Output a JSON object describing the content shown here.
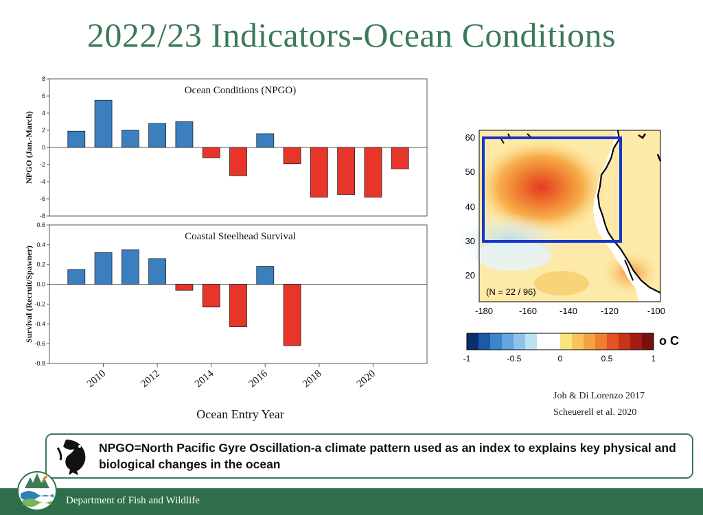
{
  "page": {
    "title": "2022/23 Indicators-Ocean Conditions",
    "x_axis_label": "Ocean Entry Year",
    "citations": [
      "Joh & Di Lorenzo 2017",
      "Scheuerell et al. 2020"
    ],
    "info_text": "NPGO=North Pacific Gyre Oscillation-a climate pattern used as an index to explains key physical and biological changes in the ocean",
    "footer_text": "Department of Fish and Wildlife"
  },
  "colors": {
    "title_green": "#3b7a57",
    "footer_green": "#2f6e4a",
    "positive_bar": "#3b7fbf",
    "negative_bar": "#e8352a",
    "map_box": "#1836c8"
  },
  "chart_data": [
    {
      "type": "bar",
      "title": "Ocean Conditions (NPGO)",
      "ylabel": "NPGO (Jan.-March)",
      "xlabel": "Ocean Entry Year",
      "x": [
        2009,
        2010,
        2011,
        2012,
        2013,
        2014,
        2015,
        2016,
        2017,
        2018,
        2019,
        2020,
        2021
      ],
      "values": [
        1.9,
        5.5,
        2.0,
        2.8,
        3.0,
        -1.2,
        -3.3,
        1.6,
        -1.9,
        -5.8,
        -5.5,
        -5.8,
        -2.5
      ],
      "ylim": [
        -8,
        8
      ],
      "yticks": [
        -8,
        -6,
        -4,
        -2,
        0,
        2,
        4,
        6,
        8
      ],
      "grid": false
    },
    {
      "type": "bar",
      "title": "Coastal Steelhead Survival",
      "ylabel": "Survival (Recruit/Spawner)",
      "xlabel": "Ocean Entry Year",
      "x": [
        2009,
        2010,
        2011,
        2012,
        2013,
        2014,
        2015,
        2016,
        2017
      ],
      "values": [
        0.15,
        0.32,
        0.35,
        0.26,
        -0.06,
        -0.23,
        -0.43,
        0.18,
        -0.62
      ],
      "ylim": [
        -0.8,
        0.6
      ],
      "yticks": [
        -0.8,
        -0.6,
        -0.4,
        -0.2,
        0.0,
        0.2,
        0.4,
        0.6
      ],
      "ytick_labels": [
        "-0.8",
        "-0.6",
        "-0.4",
        "-0.2",
        "0.0",
        "0.2",
        "0.4",
        "0.6"
      ],
      "xticks": [
        2010,
        2012,
        2014,
        2016,
        2018,
        2020
      ],
      "grid": false
    },
    {
      "type": "heatmap",
      "annotation": "(N = 22 / 96)",
      "x_ticks": [
        "-180",
        "-160",
        "-140",
        "-120",
        "-100"
      ],
      "y_ticks": [
        "60",
        "50",
        "40",
        "30",
        "20"
      ],
      "colorbar_ticks": [
        "-1",
        "-0.5",
        "0",
        "0.5",
        "1"
      ],
      "colorbar_unit": "o C",
      "colorbar_colors": [
        "#08306b",
        "#1c5aa6",
        "#3b86c8",
        "#62a6dd",
        "#8dc3ea",
        "#bde0f3",
        "#ffffff",
        "#ffffff",
        "#fbe37c",
        "#f8c45a",
        "#f4a340",
        "#ef7e30",
        "#e35324",
        "#c8331c",
        "#a31d16",
        "#7a0f0f"
      ]
    }
  ]
}
